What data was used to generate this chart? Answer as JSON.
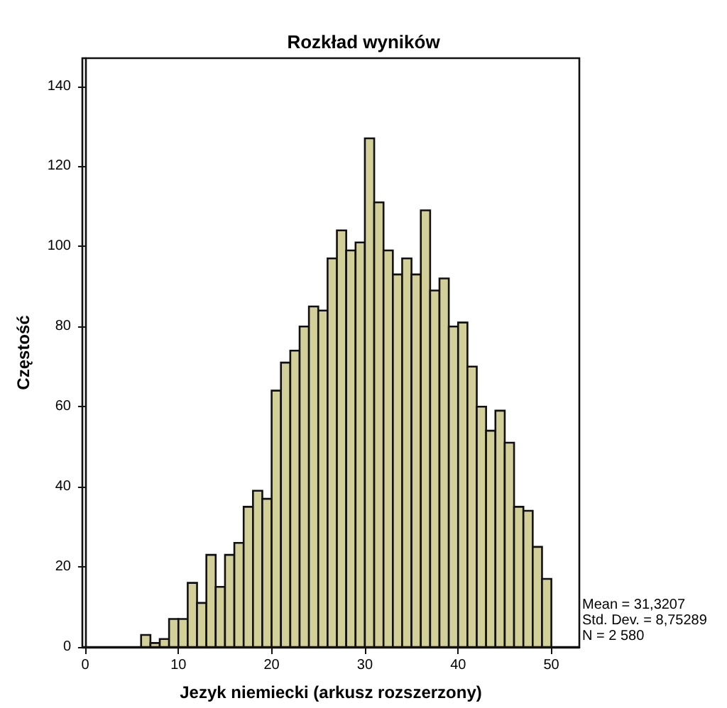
{
  "chart_data": {
    "type": "histogram",
    "title": "Rozkład wyników",
    "xlabel": "Jezyk niemiecki (arkusz rozszerzony)",
    "ylabel": "Częstość",
    "bins": [
      6,
      7,
      8,
      9,
      10,
      11,
      12,
      13,
      14,
      15,
      16,
      17,
      18,
      19,
      20,
      21,
      22,
      23,
      24,
      25,
      26,
      27,
      28,
      29,
      30,
      31,
      32,
      33,
      34,
      35,
      36,
      37,
      38,
      39,
      40,
      41,
      42,
      43,
      44,
      45,
      46,
      47,
      48,
      49,
      50
    ],
    "values": [
      3,
      1,
      2,
      7,
      7,
      16,
      11,
      23,
      15,
      23,
      26,
      35,
      39,
      37,
      64,
      71,
      74,
      80,
      85,
      84,
      97,
      104,
      99,
      101,
      127,
      111,
      99,
      93,
      97,
      93,
      109,
      89,
      92,
      80,
      81,
      70,
      60,
      54,
      59,
      51,
      35,
      34,
      25,
      17
    ],
    "color": "#d3cf99",
    "xlim": [
      -0.3,
      53
    ],
    "ylim": [
      0,
      147
    ],
    "xticks": [
      0,
      10,
      20,
      30,
      40,
      50
    ],
    "yticks": [
      0,
      20,
      40,
      60,
      80,
      100,
      120,
      140
    ],
    "grid": false,
    "annotations": [
      "Mean = 31,3207",
      "Std. Dev. = 8,75289",
      "N = 2 580"
    ]
  }
}
